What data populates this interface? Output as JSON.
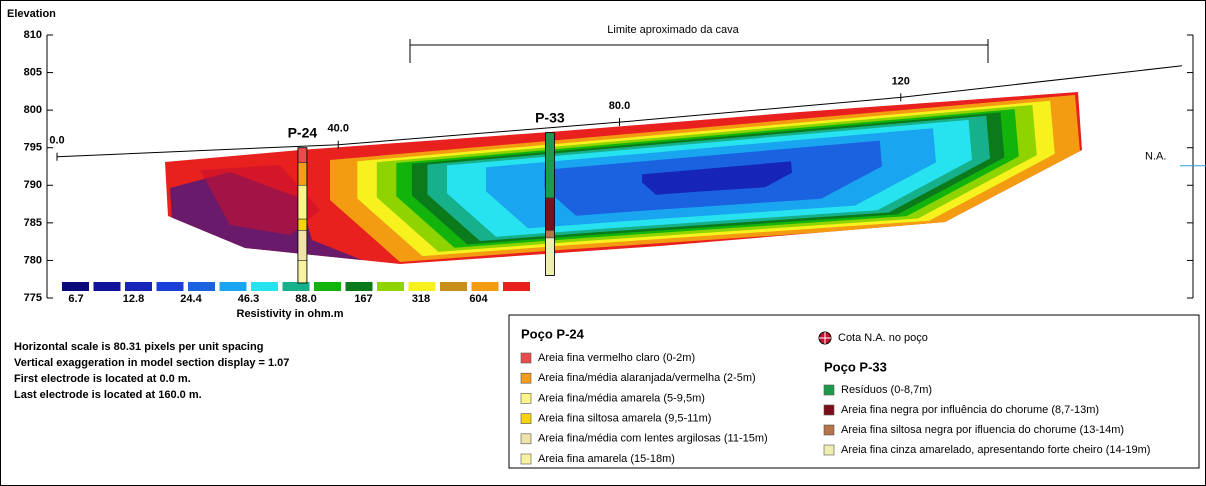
{
  "chart_data": {
    "type": "resistivity-section",
    "y_label": "Elevation",
    "ylim": [
      775,
      810
    ],
    "yticks": [
      775,
      780,
      785,
      790,
      795,
      800,
      805,
      810
    ],
    "xlim": [
      0,
      160
    ],
    "xticks": [
      {
        "value": 0,
        "label": "0.0"
      },
      {
        "value": 40,
        "label": "40.0"
      },
      {
        "value": 80,
        "label": "80.0"
      },
      120
    ],
    "topography": {
      "x": [
        0,
        40,
        80,
        120,
        160
      ],
      "values": [
        793.8,
        795.4,
        798.4,
        801.7,
        805.9
      ]
    },
    "annotation": "Limite aproximado da cava",
    "water_level": {
      "label": "N.A.",
      "value": 792.6
    },
    "color_scale": {
      "title": "Resistivity in ohm.m",
      "colors": [
        "#0a0a7a",
        "#10129a",
        "#1624b8",
        "#1a3fd8",
        "#1a62e0",
        "#1aa5f0",
        "#27e3f0",
        "#16b08a",
        "#12b40b",
        "#0a7a1a",
        "#8fd400",
        "#f7f21e",
        "#c8901a",
        "#f39c12",
        "#e8201e",
        "#c8102e",
        "#8a1040",
        "#6a1a6a"
      ],
      "ticks": [
        6.7,
        12.8,
        24.4,
        46.3,
        {
          "value": 88,
          "label": "88.0"
        },
        167,
        318,
        604
      ]
    },
    "notes": [
      "Horizontal scale is 80.31 pixels per unit spacing",
      "Vertical exaggeration in model section display = 1.07",
      "First electrode is located at 0.0  m.",
      "Last electrode is located at 160.0 m."
    ],
    "water_legend": "Cota  N.A. no poço",
    "wells": [
      {
        "name": "P-24",
        "title": "Poço P-24",
        "x": 34.9,
        "top": 795,
        "layers": [
          {
            "label": "Areia fina vermelho claro (0-2m)",
            "color": "#e84c4c",
            "top": 0,
            "bottom": 2
          },
          {
            "label": "Areia fina/média alaranjada/vermelha (2-5m)",
            "color": "#f39c1d",
            "top": 2,
            "bottom": 5
          },
          {
            "label": "Areia fina/média amarela (5-9,5m)",
            "color": "#fdf58a",
            "top": 5,
            "bottom": 9.5
          },
          {
            "label": "Areia fina siltosa amarela (9,5-11m)",
            "color": "#f6d30b",
            "top": 9.5,
            "bottom": 11
          },
          {
            "label": "Areia fina/média com lentes argilosas (11-15m)",
            "color": "#efe3a8",
            "top": 11,
            "bottom": 15
          },
          {
            "label": "Areia fina amarela (15-18m)",
            "color": "#f8f3a0",
            "top": 15,
            "bottom": 18
          }
        ]
      },
      {
        "name": "P-33",
        "title": "Poço P-33",
        "x": 70.1,
        "top": 797,
        "layers": [
          {
            "label": "Resíduos (0-8,7m)",
            "color": "#1e9a4a",
            "top": 0,
            "bottom": 8.7
          },
          {
            "label": "Areia fina negra por influência do chorume (8,7-13m)",
            "color": "#7a0f1a",
            "top": 8.7,
            "bottom": 13
          },
          {
            "label": "Areia fina siltosa negra por ifluencia do chorume (13-14m)",
            "color": "#b5744a",
            "top": 13,
            "bottom": 14
          },
          {
            "label": "Areia fina cinza amarelado, apresentando forte cheiro (14-19m)",
            "color": "#eeeeb0",
            "top": 14,
            "bottom": 19
          }
        ]
      }
    ]
  }
}
